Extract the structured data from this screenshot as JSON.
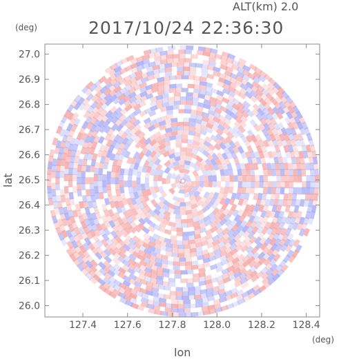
{
  "header": {
    "altitude_label": "ALT(km) 2.0",
    "timestamp": "2017/10/24 22:36:30"
  },
  "chart_data": {
    "type": "heatmap",
    "title": "2017/10/24 22:36:30",
    "subtitle": "ALT(km) 2.0",
    "xlabel": "lon",
    "ylabel": "lat",
    "x_unit": "(deg)",
    "y_unit": "(deg)",
    "xlim": [
      127.23,
      128.46
    ],
    "ylim": [
      25.955,
      27.04
    ],
    "x_ticks": [
      "127.4",
      "127.6",
      "127.8",
      "128.0",
      "128.2",
      "128.4"
    ],
    "y_ticks": [
      "26.0",
      "26.1",
      "26.2",
      "26.3",
      "26.4",
      "26.5",
      "26.6",
      "26.7",
      "26.8",
      "26.9",
      "27.0"
    ],
    "radar_center": {
      "lon": 127.848,
      "lat": 26.495
    },
    "radar_radius_lat": 0.54,
    "positive_color": "#f4a5a5",
    "negative_color": "#a8acf4",
    "grid": false,
    "colorbar": "none",
    "description_values": "field of alternating positive/negative values in range rings around the radar center"
  }
}
